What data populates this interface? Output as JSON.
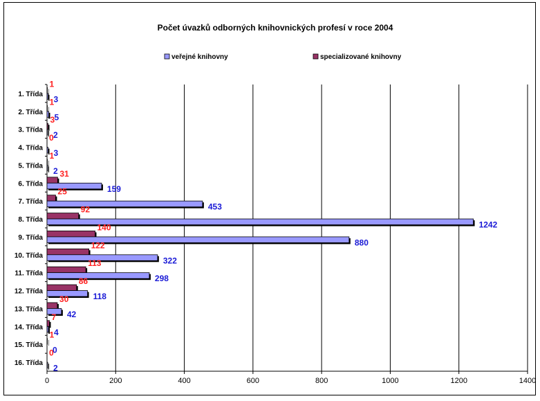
{
  "chart_data": {
    "type": "bar",
    "orientation": "horizontal",
    "title": "Počet úvazků odborných knihovnických profesí v roce 2004",
    "categories": [
      "1. Třída",
      "2. Třída",
      "3. Třída",
      "4. Třída",
      "5. Třída",
      "6. Třída",
      "7. Třída",
      "8. Třída",
      "9. Třída",
      "10. Třída",
      "11. Třída",
      "12. Třída",
      "13. Třída",
      "14. Třída",
      "15. Třída",
      "16. Třída"
    ],
    "series": [
      {
        "name": "veřejné knihovny",
        "color": "#9999ff",
        "label_color": "#1a1ad6",
        "values": [
          3,
          5,
          2,
          3,
          2,
          159,
          453,
          1242,
          880,
          322,
          298,
          118,
          42,
          4,
          0,
          2
        ]
      },
      {
        "name": "specializované knihovny",
        "color": "#993366",
        "label_color": "#ff2020",
        "values": [
          1,
          1,
          3,
          0,
          1,
          31,
          25,
          92,
          140,
          122,
          113,
          86,
          30,
          7,
          1,
          0
        ]
      }
    ],
    "xlim": [
      0,
      1400
    ],
    "xticks": [
      0,
      200,
      400,
      600,
      800,
      1000,
      1200,
      1400
    ],
    "grid": "vertical",
    "legend": "top"
  }
}
